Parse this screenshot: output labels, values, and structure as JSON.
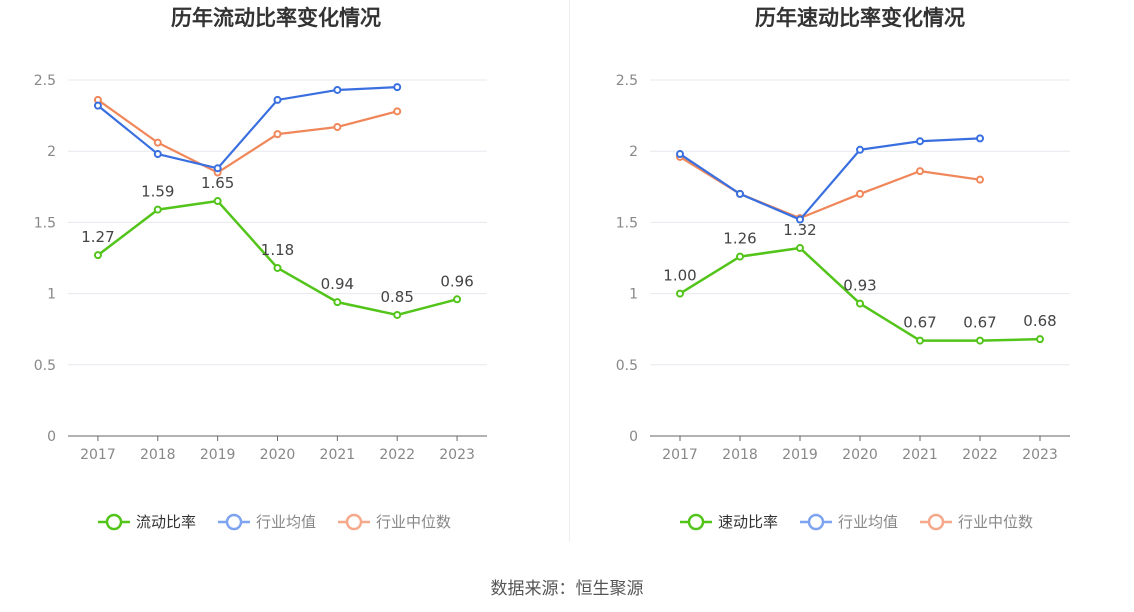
{
  "source": "数据来源：恒生聚源",
  "colors": {
    "main": "#52c41a",
    "avg": "#3a6fdf",
    "median": "#f0875a",
    "avg_legend": "#7ea3f0",
    "median_legend": "#f6a98a",
    "axis": "#666666",
    "grid": "#e6e8ee",
    "label": "#444444"
  },
  "chart_data": [
    {
      "type": "line",
      "title": "历年流动比率变化情况",
      "categories": [
        "2017",
        "2018",
        "2019",
        "2020",
        "2021",
        "2022",
        "2023"
      ],
      "ylim": [
        0,
        2.5
      ],
      "yticks": [
        "0",
        "0.5",
        "1",
        "1.5",
        "2",
        "2.5"
      ],
      "grid": true,
      "legend_position": "bottom",
      "series": [
        {
          "name": "流动比率",
          "key": "main",
          "values": [
            1.27,
            1.59,
            1.65,
            1.18,
            0.94,
            0.85,
            0.96
          ],
          "labels": [
            "1.27",
            "1.59",
            "1.65",
            "1.18",
            "0.94",
            "0.85",
            "0.96"
          ]
        },
        {
          "name": "行业均值",
          "key": "avg",
          "values": [
            2.32,
            1.98,
            1.88,
            2.36,
            2.43,
            2.45,
            null
          ]
        },
        {
          "name": "行业中位数",
          "key": "median",
          "values": [
            2.36,
            2.06,
            1.85,
            2.12,
            2.17,
            2.28,
            null
          ]
        }
      ]
    },
    {
      "type": "line",
      "title": "历年速动比率变化情况",
      "categories": [
        "2017",
        "2018",
        "2019",
        "2020",
        "2021",
        "2022",
        "2023"
      ],
      "ylim": [
        0,
        2.5
      ],
      "yticks": [
        "0",
        "0.5",
        "1",
        "1.5",
        "2",
        "2.5"
      ],
      "grid": true,
      "legend_position": "bottom",
      "series": [
        {
          "name": "速动比率",
          "key": "main",
          "values": [
            1.0,
            1.26,
            1.32,
            0.93,
            0.67,
            0.67,
            0.68
          ],
          "labels": [
            "1.00",
            "1.26",
            "1.32",
            "0.93",
            "0.67",
            "0.67",
            "0.68"
          ]
        },
        {
          "name": "行业均值",
          "key": "avg",
          "values": [
            1.98,
            1.7,
            1.52,
            2.01,
            2.07,
            2.09,
            null
          ]
        },
        {
          "name": "行业中位数",
          "key": "median",
          "values": [
            1.96,
            1.7,
            1.53,
            1.7,
            1.86,
            1.8,
            null
          ]
        }
      ]
    }
  ]
}
